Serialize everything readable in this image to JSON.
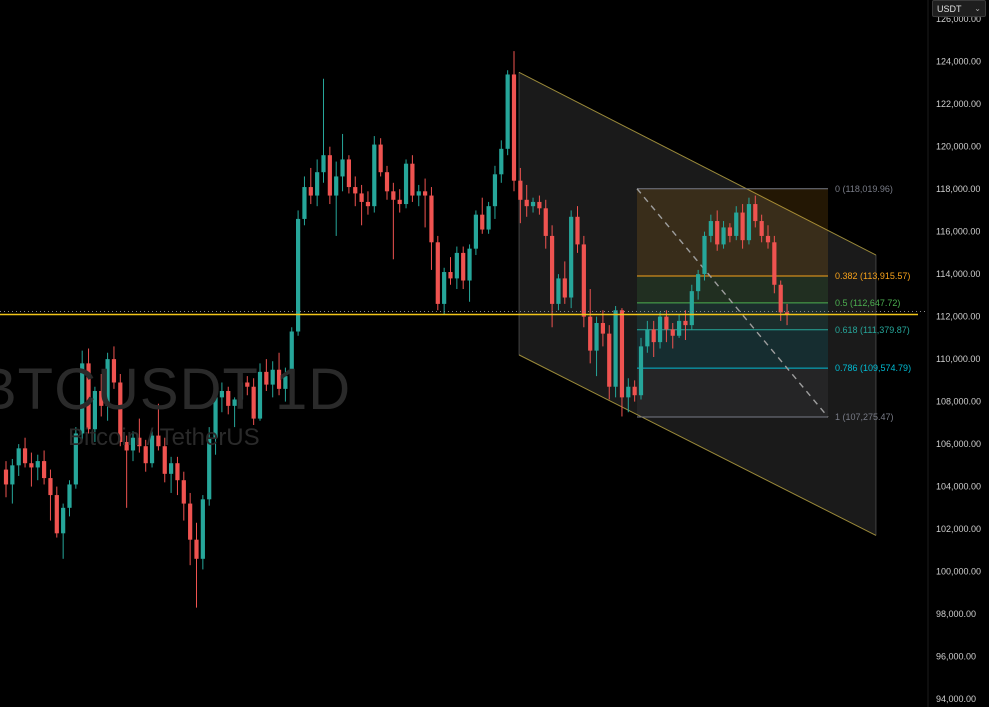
{
  "symbol_watermark": "BTCUSDT 1D",
  "symbol_description": "Bitcoin / TetherUS",
  "currency_selector": {
    "value": "USDT"
  },
  "colors": {
    "background": "#000000",
    "up": "#26a69a",
    "down": "#ef5350",
    "current_price_line": "#f0c419",
    "channel": "#9b8a3a",
    "grid_text": "#cfcfcf"
  },
  "chart_data": {
    "type": "candlestick",
    "y_axis": {
      "min": 94000,
      "max": 127000,
      "ticks": [
        "94,000.00",
        "96,000.00",
        "98,000.00",
        "100,000.00",
        "102,000.00",
        "104,000.00",
        "106,000.00",
        "108,000.00",
        "110,000.00",
        "112,000.00",
        "114,000.00",
        "116,000.00",
        "118,000.00",
        "120,000.00",
        "122,000.00",
        "124,000.00",
        "126,000.00"
      ],
      "tick_values": [
        94000,
        96000,
        98000,
        100000,
        102000,
        104000,
        106000,
        108000,
        110000,
        112000,
        114000,
        116000,
        118000,
        120000,
        122000,
        124000,
        126000
      ]
    },
    "current_price": 112100,
    "candles": [
      [
        0,
        104800,
        105200,
        103500,
        104100
      ],
      [
        1,
        104100,
        105300,
        103200,
        105000
      ],
      [
        2,
        105000,
        106000,
        104500,
        105800
      ],
      [
        3,
        105800,
        106300,
        104900,
        105100
      ],
      [
        4,
        105100,
        105600,
        104000,
        104900
      ],
      [
        5,
        104900,
        105500,
        104300,
        105200
      ],
      [
        6,
        105200,
        105700,
        104100,
        104400
      ],
      [
        7,
        104400,
        104800,
        102400,
        103600
      ],
      [
        8,
        103600,
        104000,
        101600,
        101800
      ],
      [
        9,
        101800,
        103200,
        100600,
        103000
      ],
      [
        10,
        103000,
        104300,
        102600,
        104100
      ],
      [
        11,
        104100,
        106800,
        103900,
        106500
      ],
      [
        12,
        106500,
        110400,
        106200,
        109800
      ],
      [
        13,
        109800,
        110500,
        106500,
        106700
      ],
      [
        14,
        106700,
        108700,
        106100,
        108500
      ],
      [
        15,
        108500,
        109300,
        107300,
        107800
      ],
      [
        16,
        107800,
        110300,
        107100,
        110000
      ],
      [
        17,
        110000,
        110600,
        108600,
        108900
      ],
      [
        18,
        108900,
        109300,
        105900,
        106100
      ],
      [
        19,
        106100,
        106400,
        103000,
        105700
      ],
      [
        20,
        105700,
        106600,
        105200,
        106300
      ],
      [
        21,
        106300,
        107200,
        105600,
        105900
      ],
      [
        22,
        105900,
        106200,
        104700,
        105100
      ],
      [
        23,
        105100,
        106600,
        104900,
        106400
      ],
      [
        24,
        106400,
        107900,
        105700,
        105900
      ],
      [
        25,
        105900,
        106300,
        104200,
        104600
      ],
      [
        26,
        104600,
        105400,
        103700,
        105100
      ],
      [
        27,
        105100,
        105400,
        103600,
        104300
      ],
      [
        28,
        104300,
        104700,
        102400,
        103200
      ],
      [
        29,
        103200,
        103700,
        100300,
        101500
      ],
      [
        30,
        101500,
        102300,
        98300,
        100600
      ],
      [
        31,
        100600,
        103600,
        100100,
        103400
      ],
      [
        32,
        103400,
        106800,
        103100,
        106300
      ],
      [
        33,
        106300,
        108600,
        105500,
        108200
      ],
      [
        34,
        108200,
        108900,
        107500,
        108500
      ],
      [
        35,
        108500,
        108700,
        107400,
        107800
      ],
      [
        36,
        107800,
        108200,
        106800,
        108100
      ],
      [
        37,
        108100,
        109300,
        107700,
        108900
      ],
      [
        38,
        108900,
        109200,
        108300,
        108700
      ],
      [
        39,
        108700,
        109100,
        106900,
        107200
      ],
      [
        40,
        107200,
        109800,
        107100,
        109400
      ],
      [
        41,
        109400,
        110000,
        108500,
        108800
      ],
      [
        42,
        108800,
        109900,
        108200,
        109500
      ],
      [
        43,
        109500,
        110300,
        108300,
        108600
      ],
      [
        44,
        108600,
        109600,
        108000,
        109200
      ],
      [
        45,
        109200,
        111500,
        108900,
        111300
      ],
      [
        46,
        111300,
        117000,
        111100,
        116600
      ],
      [
        47,
        116600,
        118600,
        116300,
        118100
      ],
      [
        48,
        118100,
        119000,
        117300,
        117700
      ],
      [
        49,
        117700,
        119400,
        117200,
        118800
      ],
      [
        50,
        118800,
        123200,
        118300,
        119600
      ],
      [
        51,
        119600,
        120000,
        117300,
        117700
      ],
      [
        52,
        117700,
        119300,
        115800,
        118600
      ],
      [
        53,
        118600,
        120600,
        117900,
        119400
      ],
      [
        54,
        119400,
        119600,
        117800,
        118100
      ],
      [
        55,
        118100,
        118600,
        117200,
        117800
      ],
      [
        56,
        117800,
        118200,
        116300,
        117400
      ],
      [
        57,
        117400,
        117900,
        116800,
        117200
      ],
      [
        58,
        117200,
        120500,
        116900,
        120100
      ],
      [
        59,
        120100,
        120400,
        118600,
        118800
      ],
      [
        60,
        118800,
        119100,
        117500,
        117900
      ],
      [
        61,
        117900,
        118300,
        114700,
        117500
      ],
      [
        62,
        117500,
        118000,
        116900,
        117300
      ],
      [
        63,
        117300,
        119400,
        117100,
        119200
      ],
      [
        64,
        119200,
        119600,
        117400,
        117700
      ],
      [
        65,
        117700,
        118200,
        117200,
        117900
      ],
      [
        66,
        117900,
        118500,
        116200,
        117700
      ],
      [
        67,
        117700,
        118100,
        114200,
        115500
      ],
      [
        68,
        115500,
        115800,
        112300,
        112600
      ],
      [
        69,
        112600,
        114300,
        112100,
        114100
      ],
      [
        70,
        114100,
        114800,
        113500,
        113800
      ],
      [
        71,
        113800,
        115300,
        113300,
        115000
      ],
      [
        72,
        115000,
        115300,
        113300,
        113700
      ],
      [
        73,
        113700,
        115400,
        112700,
        115200
      ],
      [
        74,
        115200,
        117000,
        114900,
        116800
      ],
      [
        75,
        116800,
        117600,
        115900,
        116100
      ],
      [
        76,
        116100,
        117400,
        115900,
        117200
      ],
      [
        77,
        117200,
        119100,
        116600,
        118700
      ],
      [
        78,
        118700,
        120300,
        118300,
        119900
      ],
      [
        79,
        119900,
        123600,
        119600,
        123400
      ],
      [
        80,
        123400,
        124500,
        117900,
        118400
      ],
      [
        81,
        118400,
        119000,
        116400,
        117500
      ],
      [
        82,
        117500,
        118200,
        116700,
        117200
      ],
      [
        83,
        117200,
        117600,
        116900,
        117400
      ],
      [
        84,
        117400,
        117700,
        116800,
        117100
      ],
      [
        85,
        117100,
        117500,
        115200,
        115800
      ],
      [
        86,
        115800,
        116300,
        111500,
        112600
      ],
      [
        87,
        112600,
        114000,
        112300,
        113800
      ],
      [
        88,
        113800,
        114600,
        112600,
        112900
      ],
      [
        89,
        112900,
        117000,
        112400,
        116700
      ],
      [
        90,
        116700,
        117200,
        115000,
        115400
      ],
      [
        91,
        115400,
        115800,
        111500,
        112000
      ],
      [
        92,
        112000,
        113300,
        109800,
        110400
      ],
      [
        93,
        110400,
        112000,
        109200,
        111700
      ],
      [
        94,
        111700,
        112300,
        110600,
        111200
      ],
      [
        95,
        111200,
        111600,
        108100,
        108700
      ],
      [
        96,
        108700,
        112500,
        108200,
        112300
      ],
      [
        97,
        112300,
        112400,
        107300,
        108200
      ],
      [
        98,
        108200,
        109100,
        107500,
        108700
      ],
      [
        99,
        108700,
        109000,
        108000,
        108300
      ],
      [
        100,
        108300,
        111000,
        108100,
        110600
      ],
      [
        101,
        110600,
        111800,
        110300,
        111400
      ],
      [
        102,
        111400,
        111800,
        110100,
        110800
      ],
      [
        103,
        110800,
        112200,
        110500,
        112000
      ],
      [
        104,
        112000,
        112300,
        110800,
        111400
      ],
      [
        105,
        111400,
        111700,
        110500,
        111100
      ],
      [
        106,
        111100,
        112100,
        111000,
        111800
      ],
      [
        107,
        111800,
        112300,
        110900,
        111600
      ],
      [
        108,
        111600,
        113500,
        111400,
        113200
      ],
      [
        109,
        113200,
        114200,
        112800,
        114000
      ],
      [
        110,
        114000,
        116000,
        113700,
        115800
      ],
      [
        111,
        115800,
        116800,
        115500,
        116500
      ],
      [
        112,
        116500,
        117000,
        115100,
        115400
      ],
      [
        113,
        115400,
        116500,
        115200,
        116200
      ],
      [
        114,
        116200,
        116400,
        115500,
        115800
      ],
      [
        115,
        115800,
        117200,
        115600,
        116900
      ],
      [
        116,
        116900,
        117300,
        115200,
        115600
      ],
      [
        117,
        115600,
        117600,
        115400,
        117300
      ],
      [
        118,
        117300,
        117700,
        116200,
        116500
      ],
      [
        119,
        116500,
        116800,
        115500,
        115800
      ],
      [
        120,
        115800,
        116300,
        115200,
        115500
      ],
      [
        121,
        115500,
        115800,
        113100,
        113500
      ],
      [
        122,
        113500,
        113700,
        111800,
        112200
      ],
      [
        123,
        112200,
        112600,
        111600,
        112100
      ]
    ],
    "fibonacci": [
      {
        "level": "0",
        "value": "118,019.96",
        "price": 118019.96,
        "color": "#787b86"
      },
      {
        "level": "0.382",
        "value": "113,915.57",
        "price": 113915.57,
        "color": "#f7a21b"
      },
      {
        "level": "0.5",
        "value": "112,647.72",
        "price": 112647.72,
        "color": "#4caf50"
      },
      {
        "level": "0.618",
        "value": "111,379.87",
        "price": 111379.87,
        "color": "#26a69a"
      },
      {
        "level": "0.786",
        "value": "109,574.79",
        "price": 109574.79,
        "color": "#00bcd4"
      },
      {
        "level": "1",
        "value": "107,275.47",
        "price": 107275.47,
        "color": "#787b86"
      }
    ],
    "channel": {
      "upper_start": 123500,
      "upper_end": 114900,
      "lower_start": 110200,
      "lower_end": 101700
    }
  }
}
